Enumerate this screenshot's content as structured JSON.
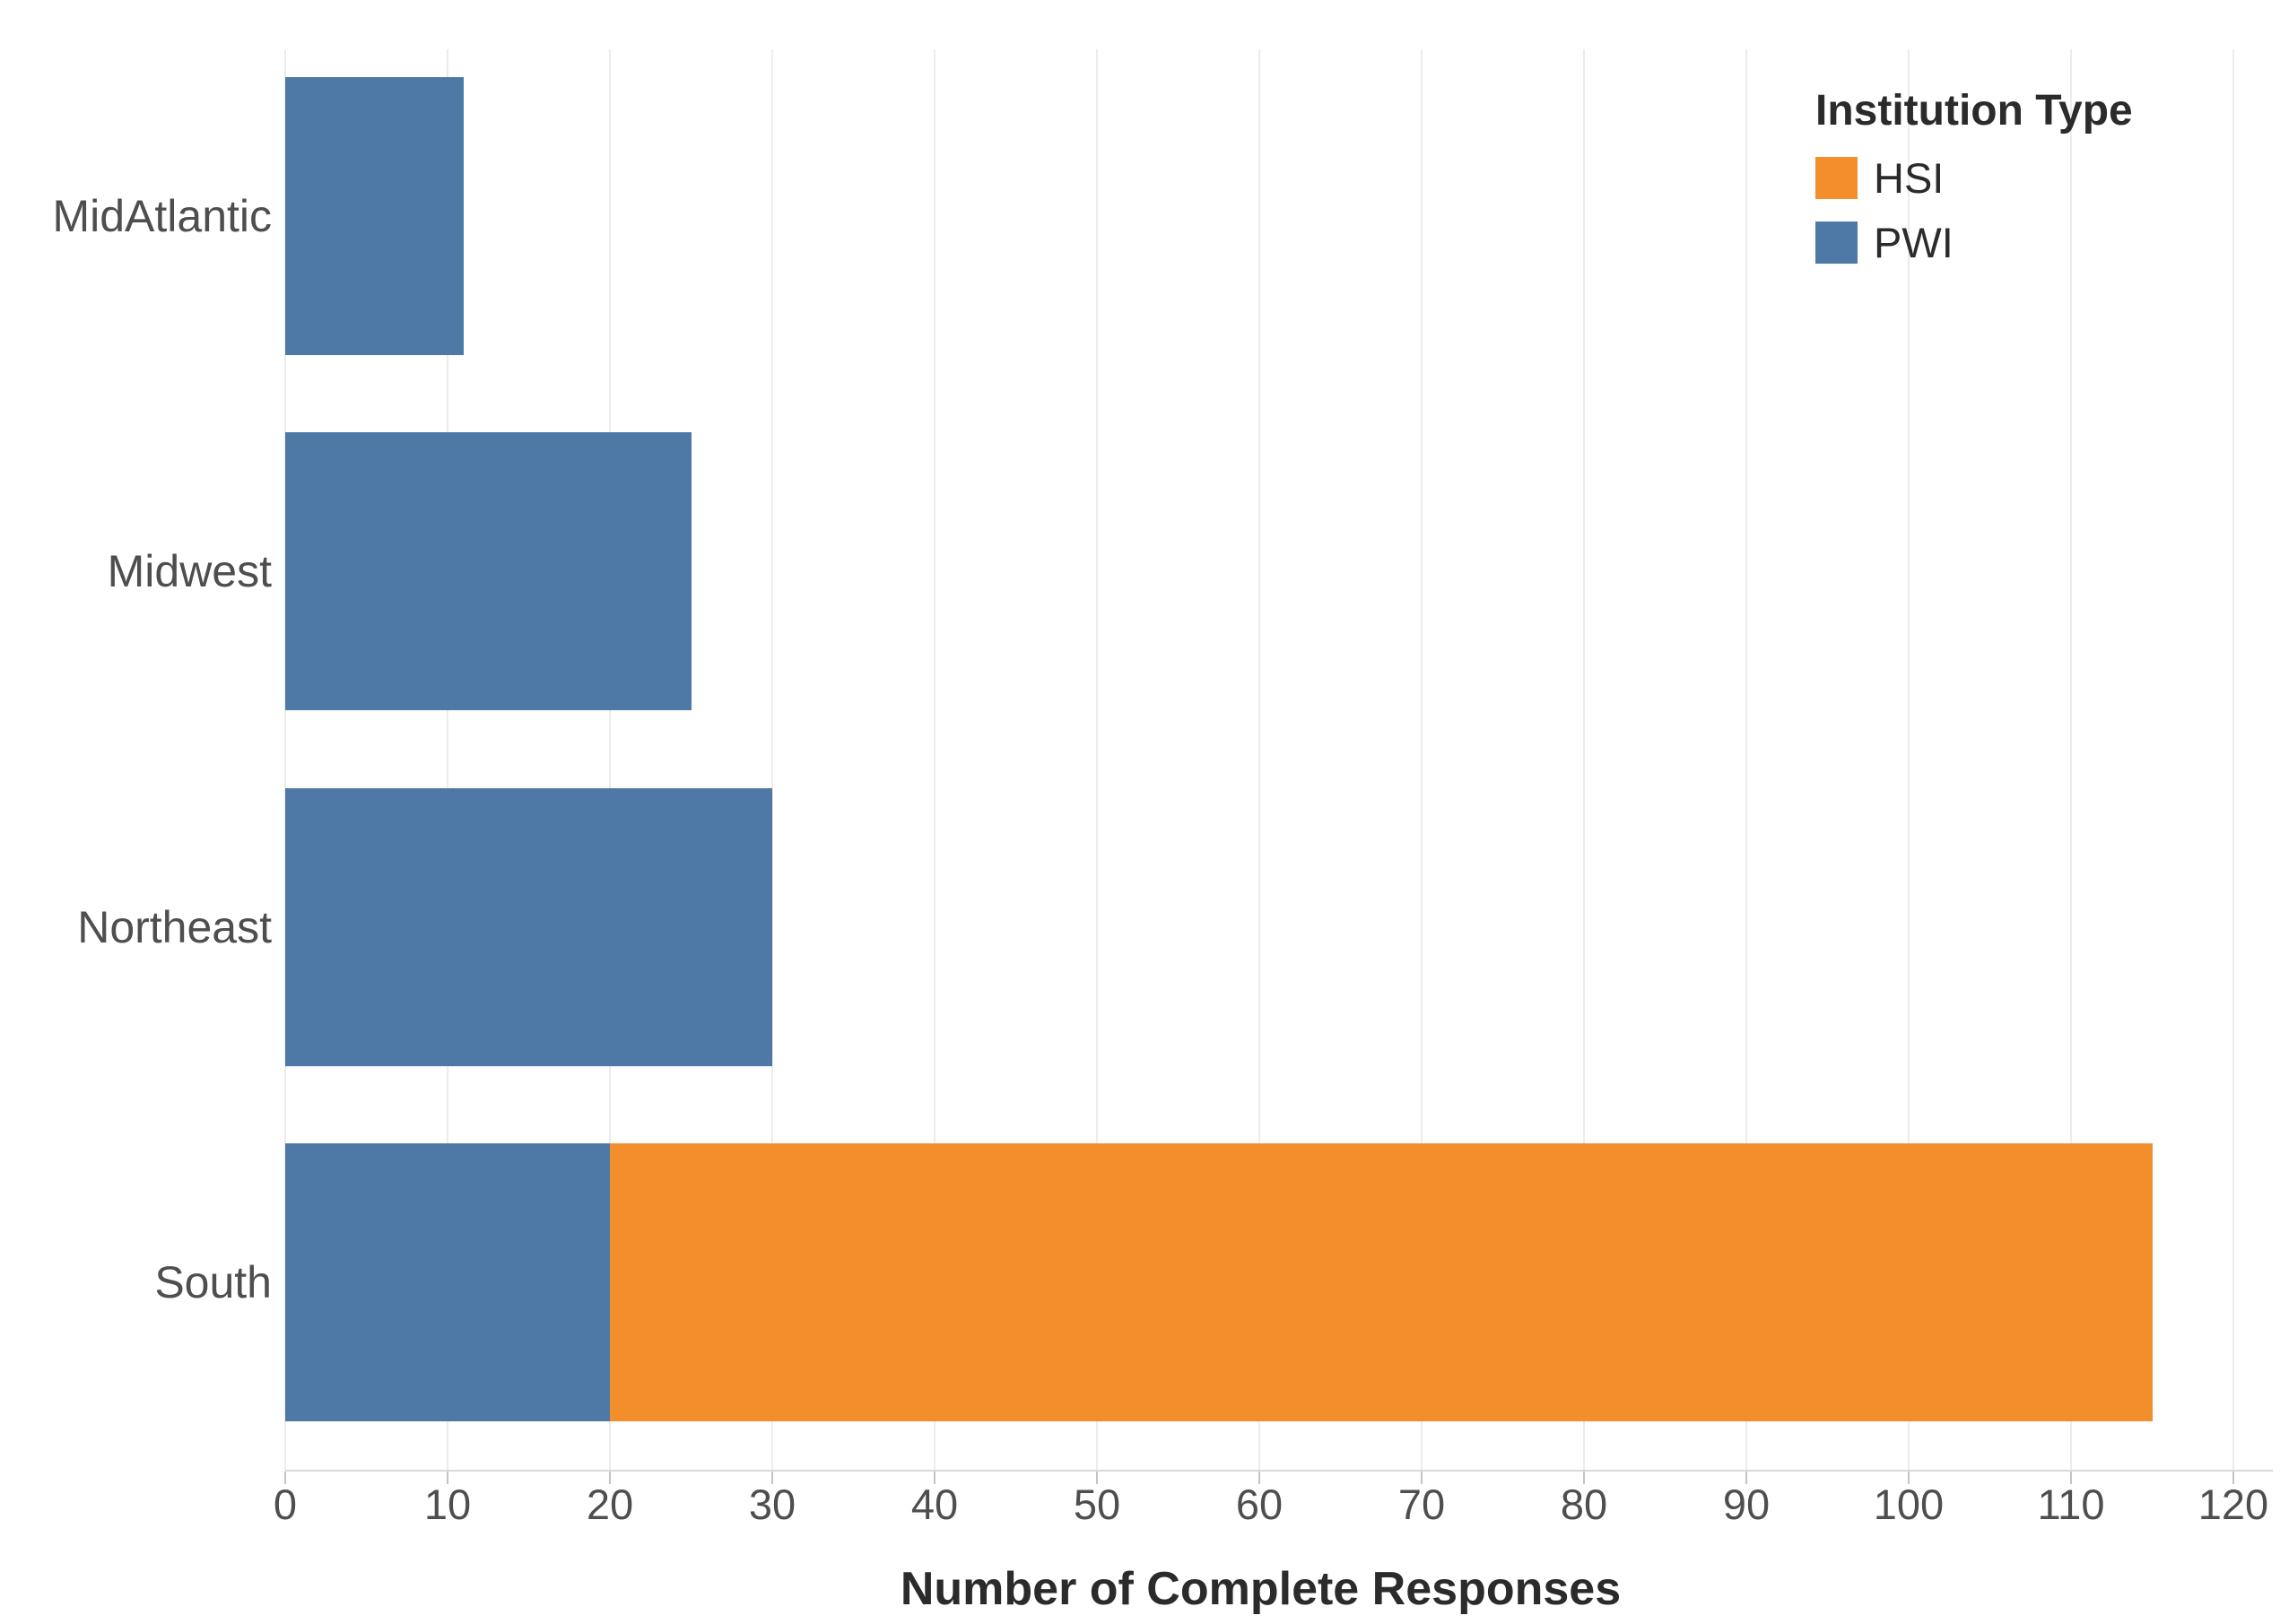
{
  "chart_data": {
    "type": "bar",
    "orientation": "horizontal",
    "stacked": true,
    "title": "",
    "xlabel": "Number of Complete Responses",
    "ylabel": "",
    "categories": [
      "MidAtlantic",
      "Midwest",
      "Northeast",
      "South"
    ],
    "series": [
      {
        "name": "HSI",
        "color": "#F28E2B",
        "values": [
          0,
          0,
          0,
          95
        ]
      },
      {
        "name": "PWI",
        "color": "#4E79A7",
        "values": [
          11,
          25,
          30,
          20
        ]
      }
    ],
    "stack_order": [
      "PWI",
      "HSI"
    ],
    "xlim": [
      0,
      120
    ],
    "xticks": [
      0,
      10,
      20,
      30,
      40,
      50,
      60,
      70,
      80,
      90,
      100,
      110,
      120
    ],
    "grid": "vertical",
    "legend": {
      "title": "Institution Type",
      "position": "top-right",
      "entries": [
        {
          "label": "HSI",
          "color": "#F28E2B"
        },
        {
          "label": "PWI",
          "color": "#4E79A7"
        }
      ]
    }
  }
}
